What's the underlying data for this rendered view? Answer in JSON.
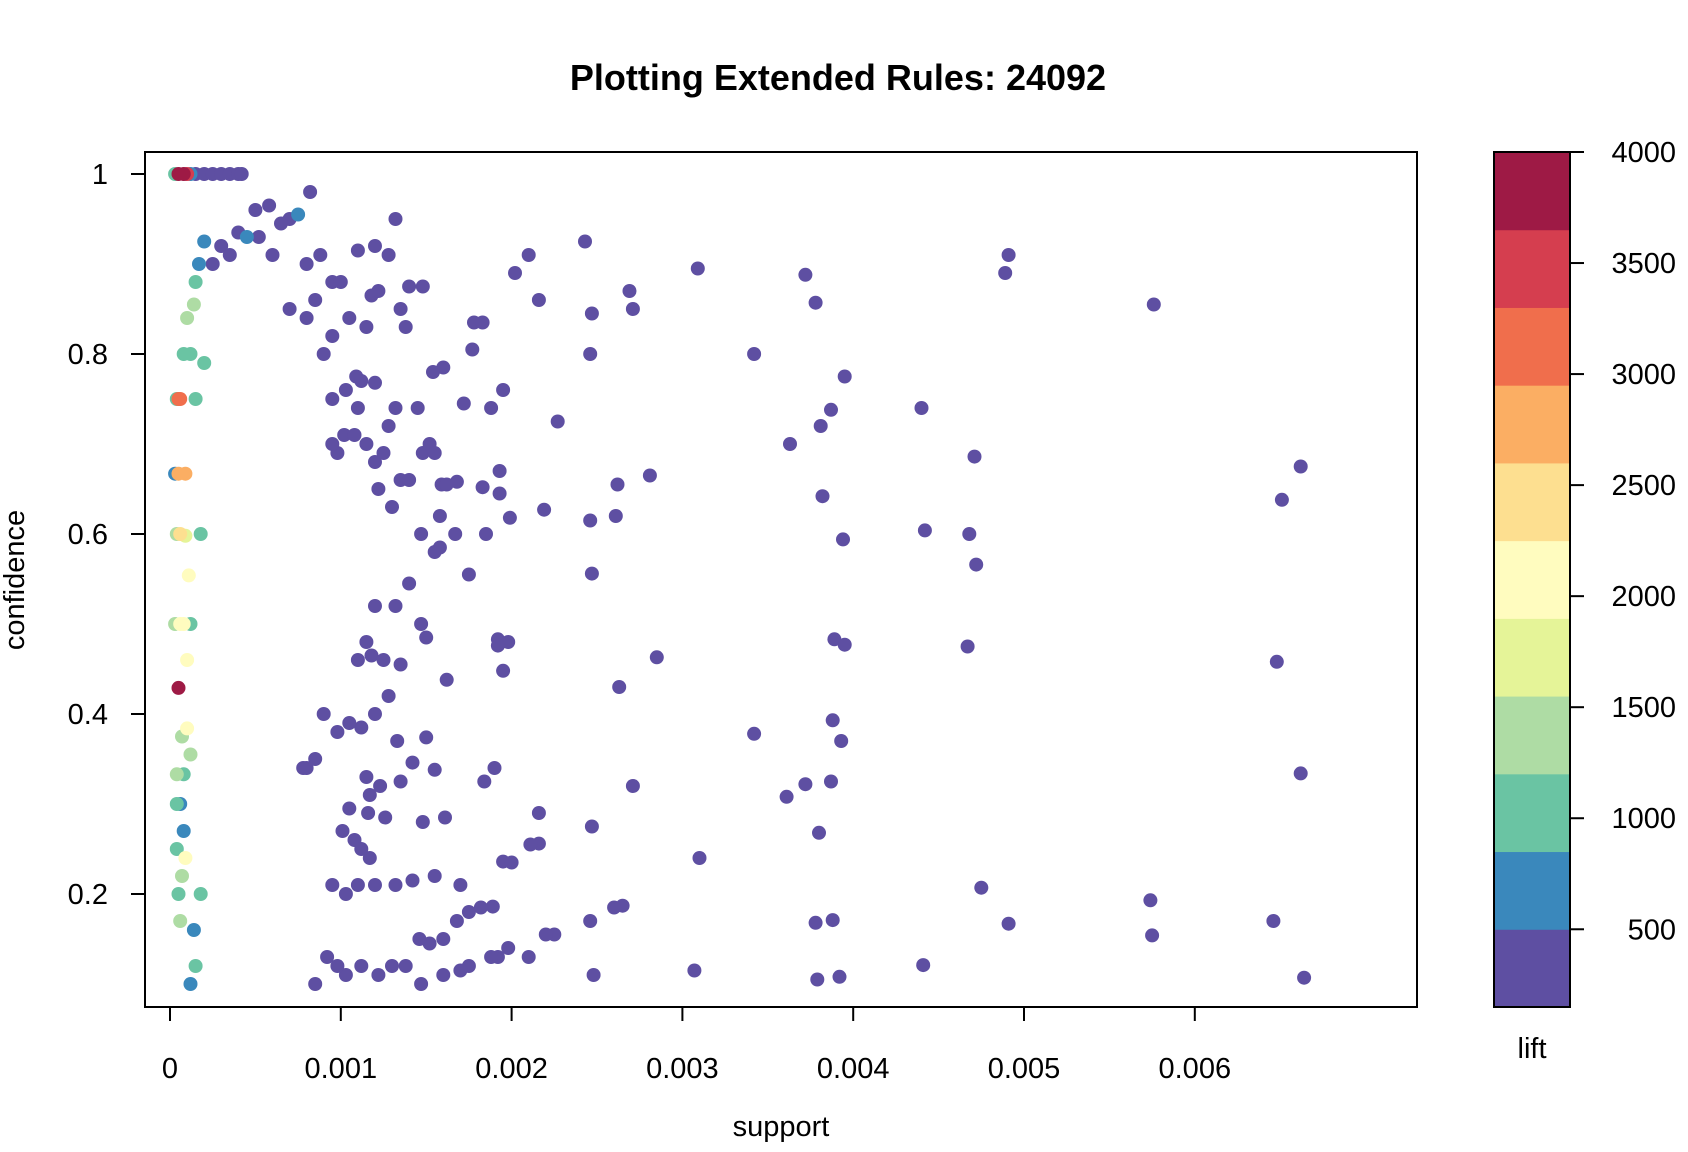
{
  "chart_data": {
    "type": "scatter",
    "title": "Plotting Extended Rules:  24092",
    "xlabel": "support",
    "ylabel": "confidence",
    "xlim": [
      0,
      0.0068
    ],
    "ylim": [
      0.1,
      1.0
    ],
    "x_ticks": [
      {
        "value": 0,
        "label": "0"
      },
      {
        "value": 0.001,
        "label": "0.001"
      },
      {
        "value": 0.002,
        "label": "0.002"
      },
      {
        "value": 0.003,
        "label": "0.003"
      },
      {
        "value": 0.004,
        "label": "0.004"
      },
      {
        "value": 0.005,
        "label": "0.005"
      },
      {
        "value": 0.006,
        "label": "0.006"
      }
    ],
    "y_ticks": [
      {
        "value": 0.2,
        "label": "0.2"
      },
      {
        "value": 0.4,
        "label": "0.4"
      },
      {
        "value": 0.6,
        "label": "0.6"
      },
      {
        "value": 0.8,
        "label": "0.8"
      },
      {
        "value": 1.0,
        "label": "1"
      }
    ],
    "grid": false,
    "color_scale": {
      "label": "lift",
      "min": 150,
      "max": 4000,
      "ticks": [
        {
          "value": 500,
          "label": "500"
        },
        {
          "value": 1000,
          "label": "1000"
        },
        {
          "value": 1500,
          "label": "1500"
        },
        {
          "value": 2000,
          "label": "2000"
        },
        {
          "value": 2500,
          "label": "2500"
        },
        {
          "value": 3000,
          "label": "3000"
        },
        {
          "value": 3500,
          "label": "3500"
        },
        {
          "value": 4000,
          "label": "4000"
        }
      ],
      "bins": [
        {
          "from": 150,
          "to": 500,
          "color": "#5E4FA2"
        },
        {
          "from": 500,
          "to": 850,
          "color": "#3A88BC"
        },
        {
          "from": 850,
          "to": 1200,
          "color": "#6AC4A3"
        },
        {
          "from": 1200,
          "to": 1550,
          "color": "#AEDCA4"
        },
        {
          "from": 1550,
          "to": 1900,
          "color": "#E5F498"
        },
        {
          "from": 1900,
          "to": 2250,
          "color": "#FFFCBF"
        },
        {
          "from": 2250,
          "to": 2600,
          "color": "#FDDF90"
        },
        {
          "from": 2600,
          "to": 2950,
          "color": "#FBAE63"
        },
        {
          "from": 2950,
          "to": 3300,
          "color": "#F06E4C"
        },
        {
          "from": 3300,
          "to": 3650,
          "color": "#D53E4F"
        },
        {
          "from": 3650,
          "to": 4000,
          "color": "#9E1A45"
        }
      ]
    },
    "points": [
      [
        5e-05,
        1.0,
        3950
      ],
      [
        8e-05,
        1.0,
        3900
      ],
      [
        0.0001,
        1.0,
        3600
      ],
      [
        3e-05,
        1.0,
        1100
      ],
      [
        0.00012,
        1.0,
        700
      ],
      [
        0.00015,
        1.0,
        300
      ],
      [
        0.0002,
        1.0,
        300
      ],
      [
        0.00025,
        1.0,
        300
      ],
      [
        0.0003,
        1.0,
        300
      ],
      [
        0.00035,
        1.0,
        300
      ],
      [
        0.0004,
        1.0,
        300
      ],
      [
        0.00042,
        1.0,
        300
      ],
      [
        5e-05,
        0.75,
        3200
      ],
      [
        6e-05,
        0.75,
        3100
      ],
      [
        4e-05,
        0.75,
        1000
      ],
      [
        5e-05,
        0.667,
        2900
      ],
      [
        9e-05,
        0.667,
        2800
      ],
      [
        3e-05,
        0.667,
        600
      ],
      [
        6e-05,
        0.6,
        2300
      ],
      [
        4e-05,
        0.6,
        1500
      ],
      [
        9e-05,
        0.598,
        1600
      ],
      [
        6e-05,
        0.5,
        2200
      ],
      [
        8e-05,
        0.5,
        2100
      ],
      [
        3e-05,
        0.5,
        1200
      ],
      [
        0.00012,
        0.5,
        1000
      ],
      [
        5e-05,
        0.429,
        3900
      ],
      [
        0.0001,
        0.46,
        2200
      ],
      [
        0.00011,
        0.554,
        2000
      ],
      [
        7e-05,
        0.375,
        1400
      ],
      [
        0.0001,
        0.384,
        2100
      ],
      [
        0.00012,
        0.355,
        1200
      ],
      [
        4e-05,
        0.333,
        1300
      ],
      [
        8e-05,
        0.333,
        1000
      ],
      [
        4e-05,
        0.3,
        1100
      ],
      [
        6e-05,
        0.3,
        800
      ],
      [
        9e-05,
        0.24,
        2000
      ],
      [
        7e-05,
        0.22,
        1500
      ],
      [
        5e-05,
        0.2,
        1000
      ],
      [
        6e-05,
        0.17,
        1200
      ],
      [
        4e-05,
        0.25,
        1100
      ],
      [
        8e-05,
        0.27,
        700
      ],
      [
        0.00014,
        0.855,
        1200
      ],
      [
        0.0002,
        0.925,
        700
      ],
      [
        0.00015,
        0.88,
        900
      ],
      [
        0.00012,
        0.8,
        1000
      ],
      [
        8e-05,
        0.8,
        1100
      ],
      [
        0.0002,
        0.79,
        1100
      ],
      [
        0.00015,
        0.75,
        900
      ],
      [
        0.00017,
        0.9,
        800
      ],
      [
        0.0001,
        0.84,
        1400
      ],
      [
        0.00075,
        0.955,
        700
      ],
      [
        0.00045,
        0.93,
        600
      ],
      [
        0.00018,
        0.6,
        900
      ],
      [
        0.00014,
        0.16,
        800
      ],
      [
        0.00018,
        0.2,
        1000
      ],
      [
        0.00012,
        0.1,
        800
      ],
      [
        0.00015,
        0.12,
        900
      ],
      [
        0.00082,
        0.98,
        300
      ],
      [
        0.00058,
        0.965,
        300
      ],
      [
        0.0005,
        0.96,
        300
      ],
      [
        0.0007,
        0.95,
        300
      ],
      [
        0.00065,
        0.945,
        300
      ],
      [
        0.0004,
        0.935,
        300
      ],
      [
        0.0003,
        0.92,
        300
      ],
      [
        0.00025,
        0.9,
        300
      ],
      [
        0.0006,
        0.91,
        300
      ],
      [
        0.00052,
        0.93,
        300
      ],
      [
        0.00035,
        0.91,
        300
      ],
      [
        0.0008,
        0.9,
        300
      ],
      [
        0.00088,
        0.91,
        300
      ],
      [
        0.00095,
        0.88,
        300
      ],
      [
        0.001,
        0.88,
        300
      ],
      [
        0.0011,
        0.915,
        300
      ],
      [
        0.0012,
        0.92,
        300
      ],
      [
        0.00128,
        0.91,
        300
      ],
      [
        0.00132,
        0.95,
        300
      ],
      [
        0.00118,
        0.865,
        300
      ],
      [
        0.00122,
        0.87,
        300
      ],
      [
        0.00135,
        0.85,
        300
      ],
      [
        0.0014,
        0.875,
        300
      ],
      [
        0.00148,
        0.875,
        300
      ],
      [
        0.00138,
        0.83,
        300
      ],
      [
        0.00115,
        0.83,
        300
      ],
      [
        0.00105,
        0.84,
        300
      ],
      [
        0.00095,
        0.82,
        300
      ],
      [
        0.0009,
        0.8,
        300
      ],
      [
        0.00085,
        0.86,
        300
      ],
      [
        0.0008,
        0.84,
        300
      ],
      [
        0.0007,
        0.85,
        300
      ],
      [
        0.00178,
        0.835,
        300
      ],
      [
        0.00183,
        0.835,
        300
      ],
      [
        0.00177,
        0.805,
        300
      ],
      [
        0.0016,
        0.785,
        300
      ],
      [
        0.00154,
        0.78,
        300
      ],
      [
        0.00109,
        0.775,
        300
      ],
      [
        0.00112,
        0.77,
        300
      ],
      [
        0.0012,
        0.768,
        300
      ],
      [
        0.00103,
        0.76,
        300
      ],
      [
        0.00095,
        0.75,
        300
      ],
      [
        0.00098,
        0.69,
        300
      ],
      [
        0.00095,
        0.7,
        300
      ],
      [
        0.00102,
        0.71,
        300
      ],
      [
        0.00108,
        0.71,
        300
      ],
      [
        0.00115,
        0.7,
        300
      ],
      [
        0.0012,
        0.68,
        300
      ],
      [
        0.00125,
        0.69,
        300
      ],
      [
        0.00122,
        0.65,
        300
      ],
      [
        0.0013,
        0.63,
        300
      ],
      [
        0.00135,
        0.66,
        300
      ],
      [
        0.0014,
        0.66,
        300
      ],
      [
        0.00148,
        0.69,
        300
      ],
      [
        0.00152,
        0.7,
        300
      ],
      [
        0.00155,
        0.69,
        300
      ],
      [
        0.00145,
        0.74,
        300
      ],
      [
        0.00132,
        0.74,
        300
      ],
      [
        0.00128,
        0.72,
        300
      ],
      [
        0.0011,
        0.74,
        300
      ],
      [
        0.00172,
        0.745,
        300
      ],
      [
        0.00188,
        0.74,
        300
      ],
      [
        0.00195,
        0.76,
        300
      ],
      [
        0.00227,
        0.725,
        300
      ],
      [
        0.00243,
        0.925,
        300
      ],
      [
        0.00202,
        0.89,
        300
      ],
      [
        0.0021,
        0.91,
        300
      ],
      [
        0.00216,
        0.86,
        300
      ],
      [
        0.00246,
        0.8,
        300
      ],
      [
        0.00247,
        0.845,
        300
      ],
      [
        0.00269,
        0.87,
        300
      ],
      [
        0.00271,
        0.85,
        300
      ],
      [
        0.00309,
        0.895,
        300
      ],
      [
        0.00342,
        0.8,
        300
      ],
      [
        0.00372,
        0.888,
        300
      ],
      [
        0.00378,
        0.857,
        300
      ],
      [
        0.00395,
        0.775,
        300
      ],
      [
        0.00387,
        0.738,
        300
      ],
      [
        0.00381,
        0.72,
        300
      ],
      [
        0.00363,
        0.7,
        300
      ],
      [
        0.0044,
        0.74,
        300
      ],
      [
        0.00489,
        0.89,
        300
      ],
      [
        0.00491,
        0.91,
        300
      ],
      [
        0.00576,
        0.855,
        300
      ],
      [
        0.00471,
        0.686,
        300
      ],
      [
        0.00662,
        0.675,
        300
      ],
      [
        0.00651,
        0.638,
        300
      ],
      [
        0.00281,
        0.665,
        300
      ],
      [
        0.00262,
        0.655,
        300
      ],
      [
        0.00261,
        0.62,
        300
      ],
      [
        0.00246,
        0.615,
        300
      ],
      [
        0.00219,
        0.627,
        300
      ],
      [
        0.00199,
        0.618,
        300
      ],
      [
        0.00193,
        0.67,
        300
      ],
      [
        0.00193,
        0.645,
        300
      ],
      [
        0.00183,
        0.652,
        300
      ],
      [
        0.00168,
        0.658,
        300
      ],
      [
        0.00159,
        0.655,
        300
      ],
      [
        0.00162,
        0.655,
        300
      ],
      [
        0.00158,
        0.62,
        300
      ],
      [
        0.00167,
        0.6,
        300
      ],
      [
        0.00155,
        0.58,
        300
      ],
      [
        0.00147,
        0.6,
        300
      ],
      [
        0.00158,
        0.585,
        300
      ],
      [
        0.00175,
        0.555,
        300
      ],
      [
        0.00185,
        0.6,
        300
      ],
      [
        0.00382,
        0.642,
        300
      ],
      [
        0.00394,
        0.594,
        300
      ],
      [
        0.00442,
        0.604,
        300
      ],
      [
        0.00468,
        0.6,
        300
      ],
      [
        0.00472,
        0.566,
        300
      ],
      [
        0.00247,
        0.556,
        300
      ],
      [
        0.00192,
        0.483,
        300
      ],
      [
        0.00198,
        0.48,
        300
      ],
      [
        0.00192,
        0.476,
        300
      ],
      [
        0.00195,
        0.448,
        300
      ],
      [
        0.00285,
        0.463,
        300
      ],
      [
        0.00263,
        0.43,
        300
      ],
      [
        0.00162,
        0.438,
        300
      ],
      [
        0.0015,
        0.485,
        300
      ],
      [
        0.00147,
        0.5,
        300
      ],
      [
        0.0014,
        0.545,
        300
      ],
      [
        0.00132,
        0.52,
        300
      ],
      [
        0.0012,
        0.52,
        300
      ],
      [
        0.00115,
        0.48,
        300
      ],
      [
        0.0011,
        0.46,
        300
      ],
      [
        0.00118,
        0.465,
        300
      ],
      [
        0.00125,
        0.46,
        300
      ],
      [
        0.00135,
        0.455,
        300
      ],
      [
        0.00128,
        0.42,
        300
      ],
      [
        0.0012,
        0.4,
        300
      ],
      [
        0.00112,
        0.385,
        300
      ],
      [
        0.00105,
        0.39,
        300
      ],
      [
        0.00098,
        0.38,
        300
      ],
      [
        0.0009,
        0.4,
        300
      ],
      [
        0.00085,
        0.35,
        300
      ],
      [
        0.0008,
        0.34,
        300
      ],
      [
        0.00078,
        0.34,
        300
      ],
      [
        0.00388,
        0.393,
        300
      ],
      [
        0.00389,
        0.483,
        300
      ],
      [
        0.00395,
        0.477,
        300
      ],
      [
        0.00467,
        0.475,
        300
      ],
      [
        0.00648,
        0.458,
        300
      ],
      [
        0.00342,
        0.378,
        300
      ],
      [
        0.00393,
        0.37,
        300
      ],
      [
        0.0015,
        0.374,
        300
      ],
      [
        0.00142,
        0.346,
        300
      ],
      [
        0.00133,
        0.37,
        300
      ],
      [
        0.00117,
        0.31,
        300
      ],
      [
        0.00115,
        0.33,
        300
      ],
      [
        0.00123,
        0.32,
        300
      ],
      [
        0.00135,
        0.325,
        300
      ],
      [
        0.00155,
        0.338,
        300
      ],
      [
        0.0019,
        0.34,
        300
      ],
      [
        0.00184,
        0.325,
        300
      ],
      [
        0.00271,
        0.32,
        300
      ],
      [
        0.00216,
        0.29,
        300
      ],
      [
        0.00148,
        0.28,
        300
      ],
      [
        0.00161,
        0.285,
        300
      ],
      [
        0.00126,
        0.285,
        300
      ],
      [
        0.00116,
        0.29,
        300
      ],
      [
        0.00105,
        0.295,
        300
      ],
      [
        0.00101,
        0.27,
        300
      ],
      [
        0.00108,
        0.26,
        300
      ],
      [
        0.00112,
        0.25,
        300
      ],
      [
        0.00117,
        0.24,
        300
      ],
      [
        0.00361,
        0.308,
        300
      ],
      [
        0.00372,
        0.322,
        300
      ],
      [
        0.00387,
        0.325,
        300
      ],
      [
        0.0038,
        0.268,
        300
      ],
      [
        0.00662,
        0.334,
        300
      ],
      [
        0.00247,
        0.275,
        300
      ],
      [
        0.00216,
        0.256,
        300
      ],
      [
        0.00211,
        0.255,
        300
      ],
      [
        0.00195,
        0.236,
        300
      ],
      [
        0.002,
        0.235,
        300
      ],
      [
        0.0031,
        0.24,
        300
      ],
      [
        0.0017,
        0.21,
        300
      ],
      [
        0.00155,
        0.22,
        300
      ],
      [
        0.00142,
        0.215,
        300
      ],
      [
        0.00132,
        0.21,
        300
      ],
      [
        0.0012,
        0.21,
        300
      ],
      [
        0.0011,
        0.21,
        300
      ],
      [
        0.00103,
        0.2,
        300
      ],
      [
        0.00095,
        0.21,
        300
      ],
      [
        0.00475,
        0.207,
        300
      ],
      [
        0.00574,
        0.193,
        300
      ],
      [
        0.00265,
        0.187,
        300
      ],
      [
        0.0026,
        0.185,
        300
      ],
      [
        0.00246,
        0.17,
        300
      ],
      [
        0.00225,
        0.155,
        300
      ],
      [
        0.0022,
        0.155,
        300
      ],
      [
        0.00189,
        0.186,
        300
      ],
      [
        0.00182,
        0.185,
        300
      ],
      [
        0.00175,
        0.18,
        300
      ],
      [
        0.00168,
        0.17,
        300
      ],
      [
        0.0016,
        0.15,
        300
      ],
      [
        0.00152,
        0.145,
        300
      ],
      [
        0.00146,
        0.15,
        300
      ],
      [
        0.00378,
        0.168,
        300
      ],
      [
        0.00388,
        0.171,
        300
      ],
      [
        0.00491,
        0.167,
        300
      ],
      [
        0.00646,
        0.17,
        300
      ],
      [
        0.00575,
        0.154,
        300
      ],
      [
        0.0021,
        0.13,
        300
      ],
      [
        0.00198,
        0.14,
        300
      ],
      [
        0.00192,
        0.13,
        300
      ],
      [
        0.00188,
        0.13,
        300
      ],
      [
        0.00175,
        0.12,
        300
      ],
      [
        0.0017,
        0.115,
        300
      ],
      [
        0.0016,
        0.11,
        300
      ],
      [
        0.00147,
        0.1,
        300
      ],
      [
        0.00138,
        0.12,
        300
      ],
      [
        0.0013,
        0.12,
        300
      ],
      [
        0.00122,
        0.11,
        300
      ],
      [
        0.00112,
        0.12,
        300
      ],
      [
        0.00103,
        0.11,
        300
      ],
      [
        0.00098,
        0.12,
        300
      ],
      [
        0.00092,
        0.13,
        300
      ],
      [
        0.00085,
        0.1,
        300
      ],
      [
        0.00248,
        0.11,
        300
      ],
      [
        0.00307,
        0.115,
        300
      ],
      [
        0.00379,
        0.105,
        300
      ],
      [
        0.00392,
        0.108,
        300
      ],
      [
        0.00441,
        0.121,
        300
      ],
      [
        0.00664,
        0.107,
        300
      ]
    ]
  }
}
